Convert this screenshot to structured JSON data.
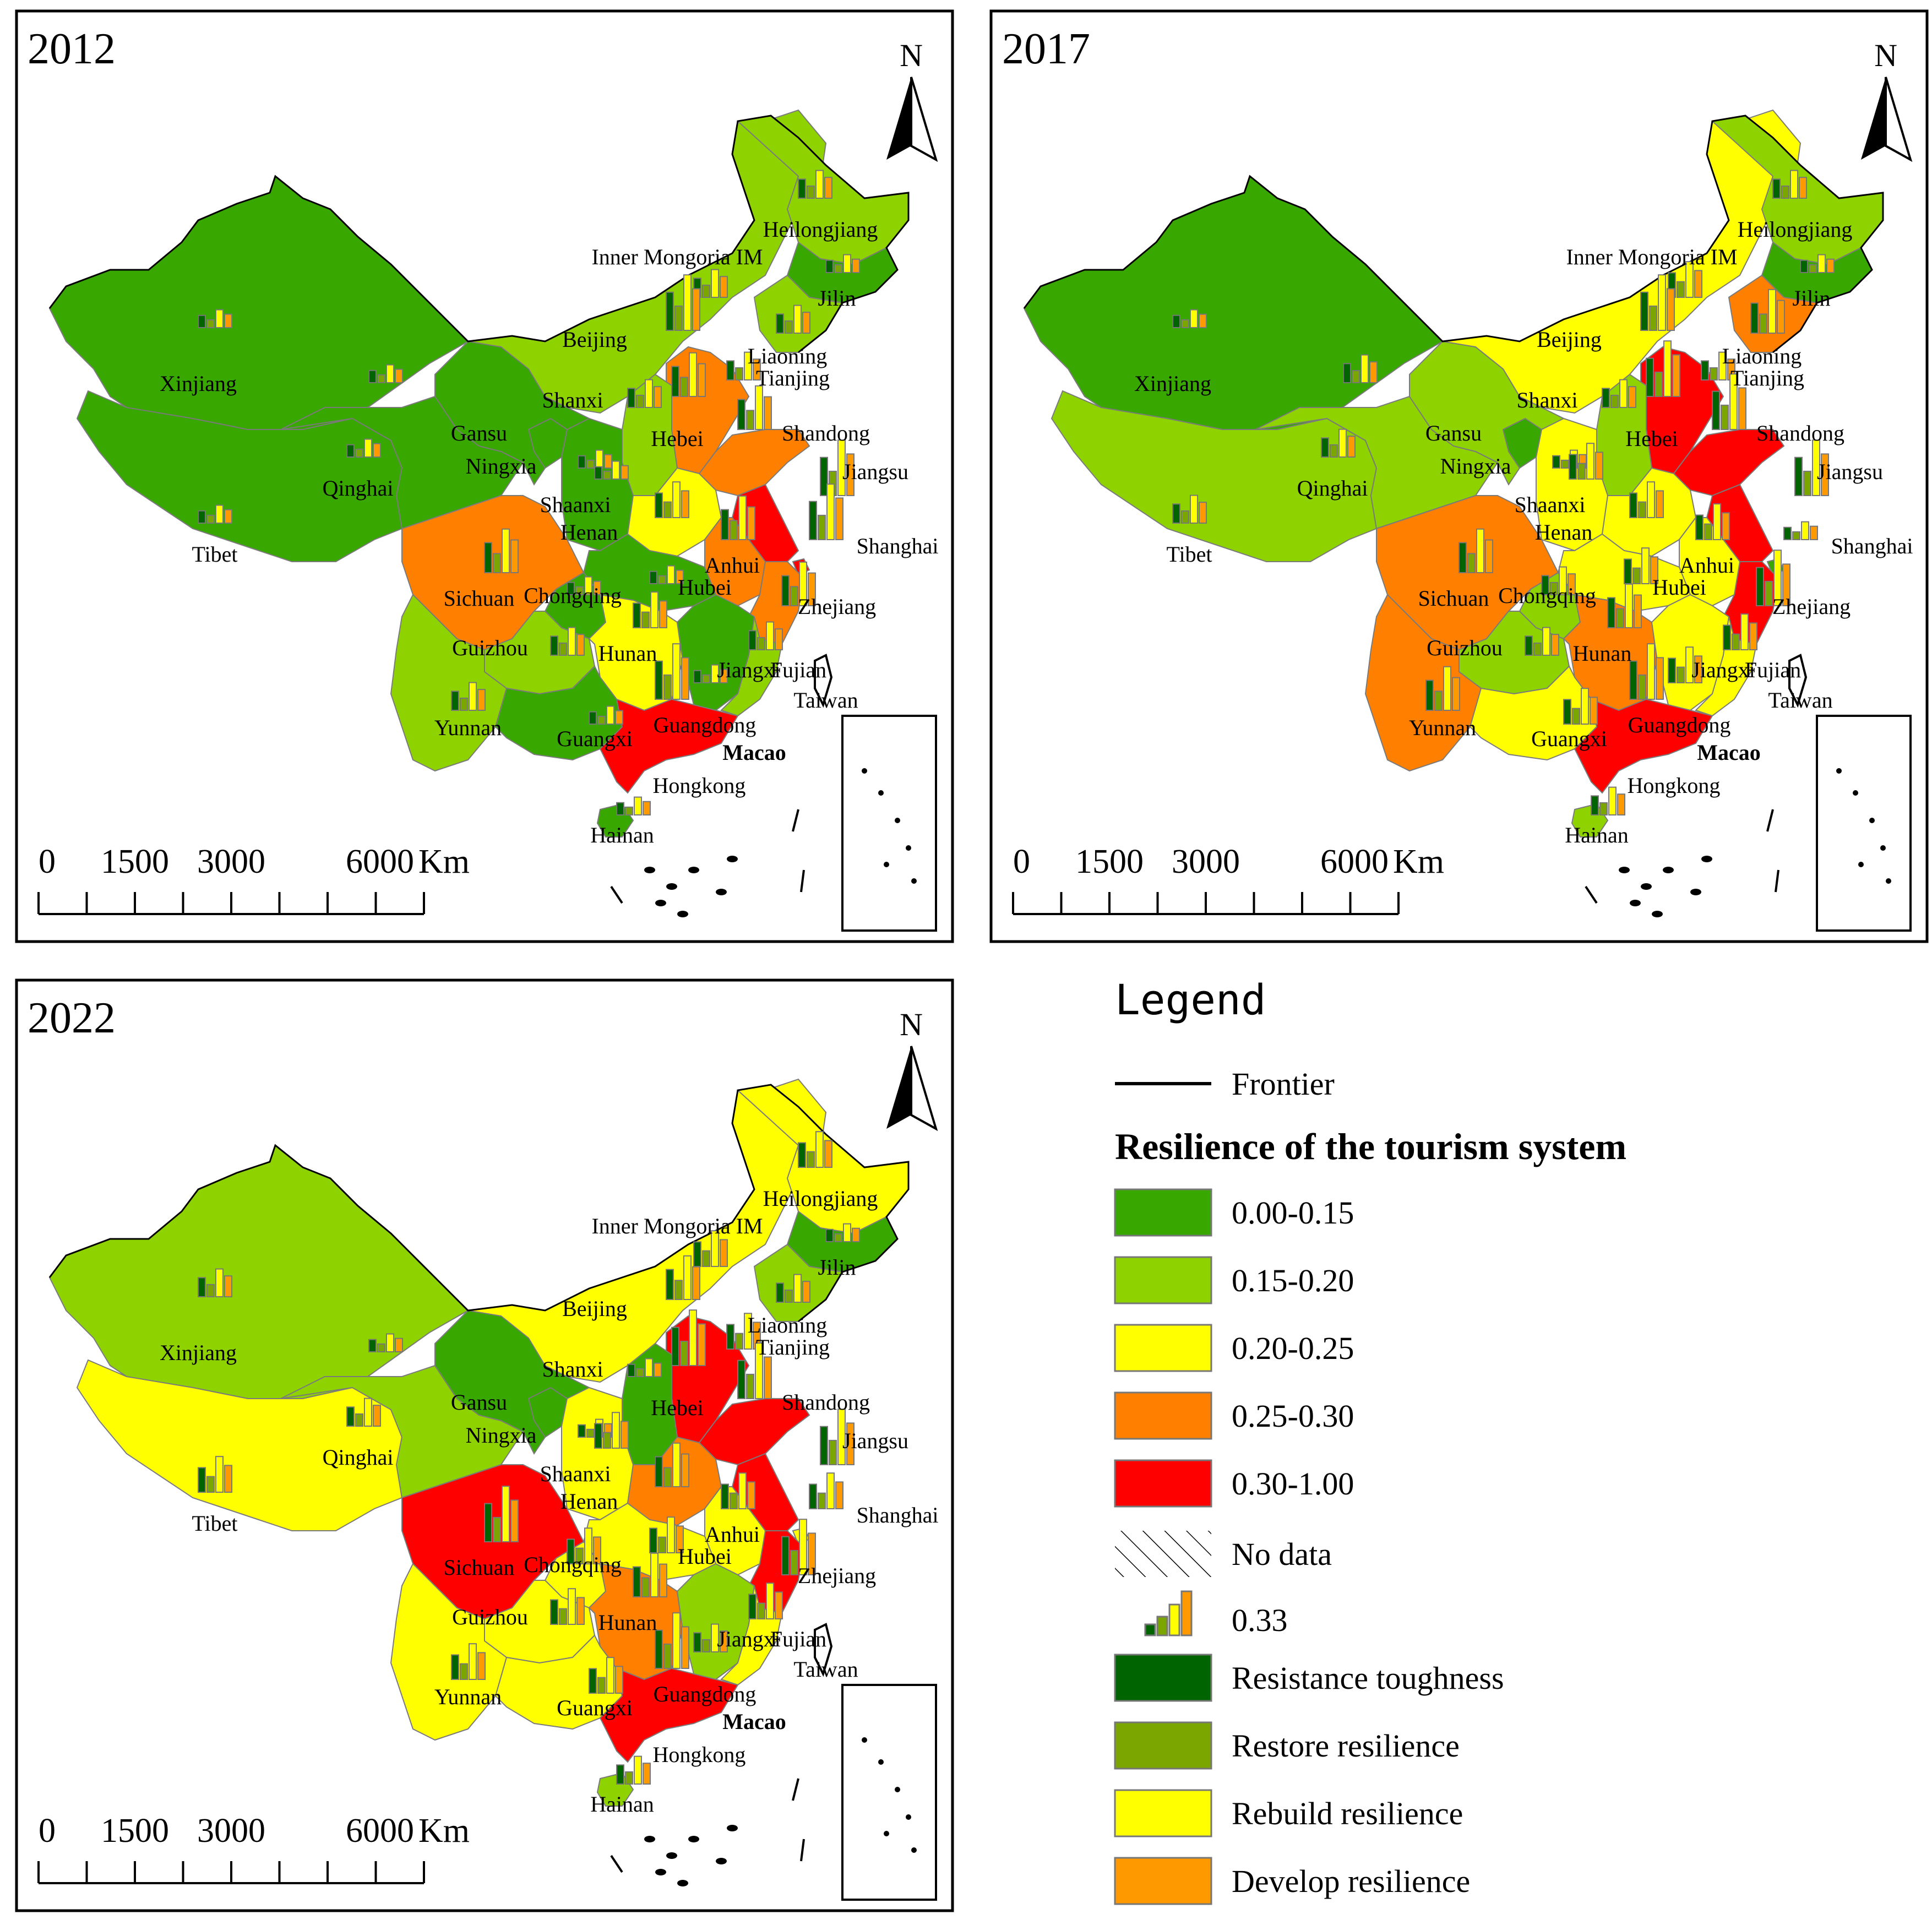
{
  "panels": [
    {
      "year": "2012",
      "provinces": {
        "xinjiang": "0.00-0.15",
        "tibet": "0.00-0.15",
        "qinghai": "0.00-0.15",
        "gansu": "0.00-0.15",
        "ningxia": "0.00-0.15",
        "im": "0.15-0.20",
        "heilongjiang": "0.15-0.20",
        "jilin": "0.00-0.15",
        "liaoning": "0.15-0.20",
        "beijing": "0.30-1.00",
        "tianjin": "0.15-0.20",
        "hebei": "0.25-0.30",
        "shanxi": "0.15-0.20",
        "shaanxi": "0.00-0.15",
        "henan": "0.20-0.25",
        "shandong": "0.25-0.30",
        "jiangsu": "0.30-1.00",
        "shanghai": "0.30-1.00",
        "anhui": "0.25-0.30",
        "hubei": "0.00-0.15",
        "zhejiang": "0.25-0.30",
        "sichuan": "0.25-0.30",
        "chongqing": "0.00-0.15",
        "guizhou": "0.15-0.20",
        "yunnan": "0.15-0.20",
        "hunan": "0.20-0.25",
        "jiangxi": "0.00-0.15",
        "fujian": "0.15-0.20",
        "guangxi": "0.00-0.15",
        "guangdong": "0.30-1.00",
        "hainan": "0.00-0.15"
      }
    },
    {
      "year": "2017",
      "provinces": {
        "xinjiang": "0.00-0.15",
        "tibet": "0.15-0.20",
        "qinghai": "0.15-0.20",
        "gansu": "0.15-0.20",
        "ningxia": "0.00-0.15",
        "im": "0.20-0.25",
        "heilongjiang": "0.15-0.20",
        "jilin": "0.00-0.15",
        "liaoning": "0.25-0.30",
        "beijing": "0.30-1.00",
        "tianjin": "0.15-0.20",
        "hebei": "0.30-1.00",
        "shanxi": "0.15-0.20",
        "shaanxi": "0.20-0.25",
        "henan": "0.20-0.25",
        "shandong": "0.30-1.00",
        "jiangsu": "0.30-1.00",
        "shanghai": "0.00-0.15",
        "anhui": "0.20-0.25",
        "hubei": "0.20-0.25",
        "zhejiang": "0.30-1.00",
        "sichuan": "0.25-0.30",
        "chongqing": "0.15-0.20",
        "guizhou": "0.15-0.20",
        "yunnan": "0.25-0.30",
        "hunan": "0.25-0.30",
        "jiangxi": "0.20-0.25",
        "fujian": "0.20-0.25",
        "guangxi": "0.20-0.25",
        "guangdong": "0.30-1.00",
        "hainan": "0.15-0.20"
      }
    },
    {
      "year": "2022",
      "provinces": {
        "xinjiang": "0.15-0.20",
        "tibet": "0.20-0.25",
        "qinghai": "0.15-0.20",
        "gansu": "0.00-0.15",
        "ningxia": "0.00-0.15",
        "im": "0.20-0.25",
        "heilongjiang": "0.20-0.25",
        "jilin": "0.00-0.15",
        "liaoning": "0.15-0.20",
        "beijing": "0.25-0.30",
        "tianjin": "0.20-0.25",
        "hebei": "0.30-1.00",
        "shanxi": "0.00-0.15",
        "shaanxi": "0.20-0.25",
        "henan": "0.25-0.30",
        "shandong": "0.30-1.00",
        "jiangsu": "0.30-1.00",
        "shanghai": "0.20-0.25",
        "anhui": "0.20-0.25",
        "hubei": "0.20-0.25",
        "zhejiang": "0.30-1.00",
        "sichuan": "0.30-1.00",
        "chongqing": "0.20-0.25",
        "guizhou": "0.20-0.25",
        "yunnan": "0.20-0.25",
        "hunan": "0.25-0.30",
        "jiangxi": "0.15-0.20",
        "fujian": "0.20-0.25",
        "guangxi": "0.20-0.25",
        "guangdong": "0.30-1.00",
        "hainan": "0.15-0.20"
      }
    }
  ],
  "map_labels": {
    "xinjiang": "Xinjiang",
    "tibet": "Tibet",
    "qinghai": "Qinghai",
    "gansu": "Gansu",
    "ningxia": "Ningxia",
    "im": "Inner Mongoria IM",
    "heilongjiang": "Heilongjiang",
    "jilin": "Jilin",
    "liaoning": "Liaoning",
    "beijing": "Beijing",
    "tianjin": "Tianjing",
    "hebei": "Hebei",
    "shanxi": "Shanxi",
    "shaanxi": "Shaanxi",
    "henan": "Henan",
    "shandong": "Shandong",
    "jiangsu": "Jiangsu",
    "shanghai": "Shanghai",
    "anhui": "Anhui",
    "hubei": "Hubei",
    "zhejiang": "Zhejiang",
    "sichuan": "Sichuan",
    "chongqing": "Chongqing",
    "guizhou": "Guizhou",
    "yunnan": "Yunnan",
    "hunan": "Hunan",
    "jiangxi": "Jiangxi",
    "fujian": "Fujian",
    "guangxi": "Guangxi",
    "guangdong": "Guangdong",
    "hainan": "Hainan",
    "taiwan": "Taiwan",
    "macao": "Macao",
    "hongkong": "Hongkong"
  },
  "north_label": "N",
  "scale": {
    "ticks": [
      "0",
      "1500",
      "3000",
      "6000"
    ],
    "unit": "Km"
  },
  "legend": {
    "title": "Legend",
    "frontier_label": "Frontier",
    "classes_title": "Resilience of the tourism system",
    "classes": [
      {
        "label": "0.00-0.15",
        "color": "#38A800"
      },
      {
        "label": "0.15-0.20",
        "color": "#8ED300"
      },
      {
        "label": "0.20-0.25",
        "color": "#FFFF00"
      },
      {
        "label": "0.25-0.30",
        "color": "#FF8000"
      },
      {
        "label": "0.30-1.00",
        "color": "#FF0000"
      }
    ],
    "no_data_label": "No data",
    "bar_value_label": "0.33",
    "bar_series": [
      {
        "label": "Resistance toughness",
        "color": "#006400"
      },
      {
        "label": "Restore resilience",
        "color": "#7BA600"
      },
      {
        "label": "Rebuild resilience",
        "color": "#FFFF00"
      },
      {
        "label": "Develop resilience",
        "color": "#FF9900"
      }
    ]
  }
}
